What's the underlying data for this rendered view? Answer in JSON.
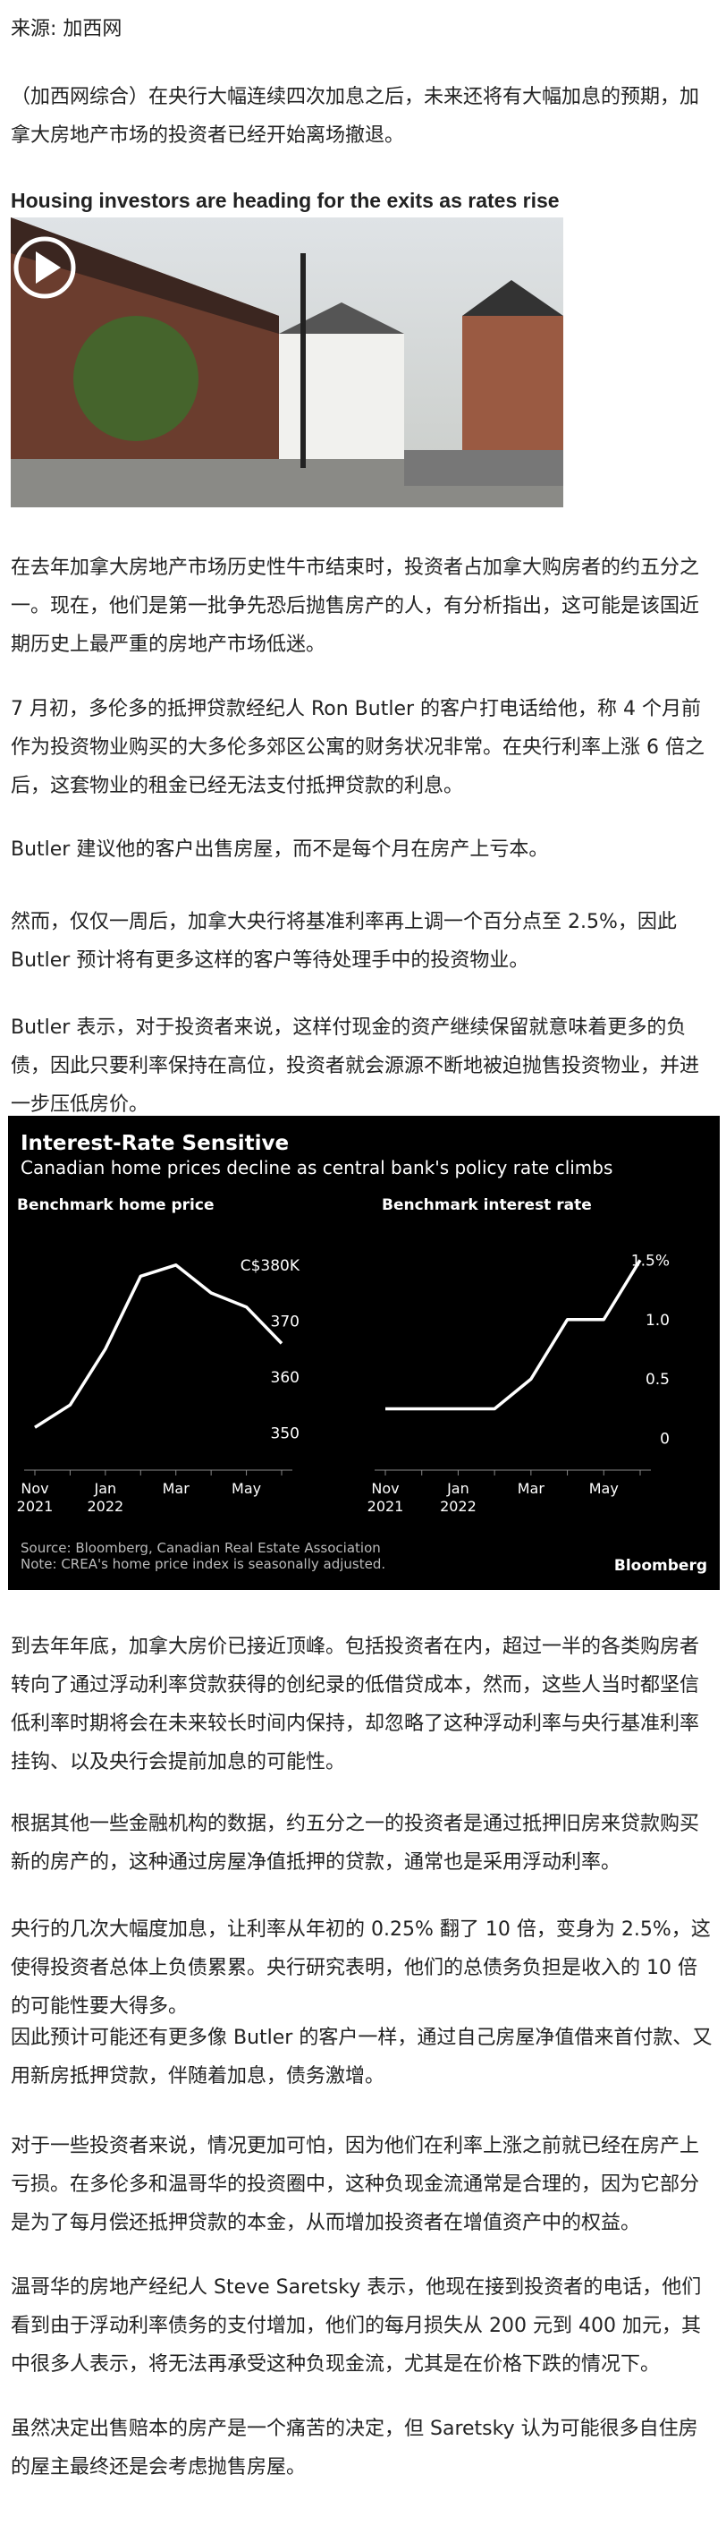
{
  "source": "来源: 加西网",
  "intro": "（加西网综合）在央行大幅连续四次加息之后，未来还将有大幅加息的预期，加拿大房地产市场的投资者已经开始离场撤退。",
  "video_title": "Housing investors are heading for the exits as rates rise",
  "paragraphs_before": [
    "在去年加拿大房地产市场历史性牛市结束时，投资者占加拿大购房者的约五分之一。现在，他们是第一批争先恐后抛售房产的人，有分析指出，这可能是该国近期历史上最严重的房地产市场低迷。",
    "7 月初，多伦多的抵押贷款经纪人 Ron Butler 的客户打电话给他，称 4 个月前作为投资物业购买的大多伦多郊区公寓的财务状况非常。在央行利率上涨 6 倍之后，这套物业的租金已经无法支付抵押贷款的利息。",
    "Butler 建议他的客户出售房屋，而不是每个月在房产上亏本。",
    "然而，仅仅一周后，加拿大央行将基准利率再上调一个百分点至 2.5%，因此 Butler 预计将有更多这样的客户等待处理手中的投资物业。",
    "Butler 表示，对于投资者来说，这样付现金的资产继续保留就意味着更多的负债，因此只要利率保持在高位，投资者就会源源不断地被迫抛售投资物业，并进一步压低房价。"
  ],
  "figure": {
    "title": "Interest-Rate Sensitive",
    "subtitle": "Canadian home prices decline as central bank's policy rate climbs",
    "source": "Source: Bloomberg, Canadian Real Estate Association",
    "note": "Note: CREA's home price index is seasonally adjusted.",
    "brand": "Bloomberg"
  },
  "chart_data": [
    {
      "type": "line",
      "title": "Benchmark home price",
      "categories": [
        "Nov 2021",
        null,
        "Jan 2022",
        null,
        "Mar",
        null,
        "May",
        null
      ],
      "values": [
        351,
        355,
        365,
        378,
        380,
        375,
        372.5,
        366
      ],
      "color": "#ffffff",
      "ylim": [
        348,
        383
      ],
      "yticks": [
        350,
        360,
        370,
        {
          "value": 380,
          "label": "C$380K"
        }
      ]
    },
    {
      "type": "line",
      "title": "Benchmark interest rate",
      "categories": [
        "Nov 2021",
        null,
        "Jan 2022",
        null,
        "Mar",
        null,
        "May",
        null
      ],
      "values": [
        0.25,
        0.25,
        0.25,
        0.25,
        0.5,
        1.0,
        1.0,
        1.5
      ],
      "color": "#ffffff",
      "ylim": [
        -0.1,
        1.6
      ],
      "yticks": [
        0,
        0.5,
        {
          "value": 1,
          "label": "1.0"
        },
        {
          "value": 1.5,
          "label": "1.5%"
        }
      ]
    }
  ],
  "paragraphs_after": [
    "到去年年底，加拿大房价已接近顶峰。包括投资者在内，超过一半的各类购房者转向了通过浮动利率贷款获得的创纪录的低借贷成本，然而，这些人当时都坚信低利率时期将会在未来较长时间内保持，却忽略了这种浮动利率与央行基准利率挂钩、以及央行会提前加息的可能性。",
    "根据其他一些金融机构的数据，约五分之一的投资者是通过抵押旧房来贷款购买新的房产的，这种通过房屋净值抵押的贷款，通常也是采用浮动利率。",
    "央行的几次大幅度加息，让利率从年初的 0.25% 翻了 10 倍，变身为 2.5%，这使得投资者总体上负债累累。央行研究表明，他们的总债务负担是收入的 10 倍的可能性要大得多。",
    "因此预计可能还有更多像 Butler 的客户一样，通过自己房屋净值借来首付款、又用新房抵押贷款，伴随着加息，债务激增。",
    "对于一些投资者来说，情况更加可怕，因为他们在利率上涨之前就已经在房产上亏损。在多伦多和温哥华的投资圈中，这种负现金流通常是合理的，因为它部分是为了每月偿还抵押贷款的本金，从而增加投资者在增值资产中的权益。",
    "温哥华的房地产经纪人 Steve Saretsky 表示，他现在接到投资者的电话，他们看到由于浮动利率债务的支付增加，他们的每月损失从 200 元到 400 加元，其中很多人表示，将无法再承受这种负现金流，尤其是在价格下跌的情况下。",
    "虽然决定出售赔本的房产是一个痛苦的决定，但 Saretsky 认为可能很多自住房的屋主最终还是会考虑抛售房屋。"
  ]
}
